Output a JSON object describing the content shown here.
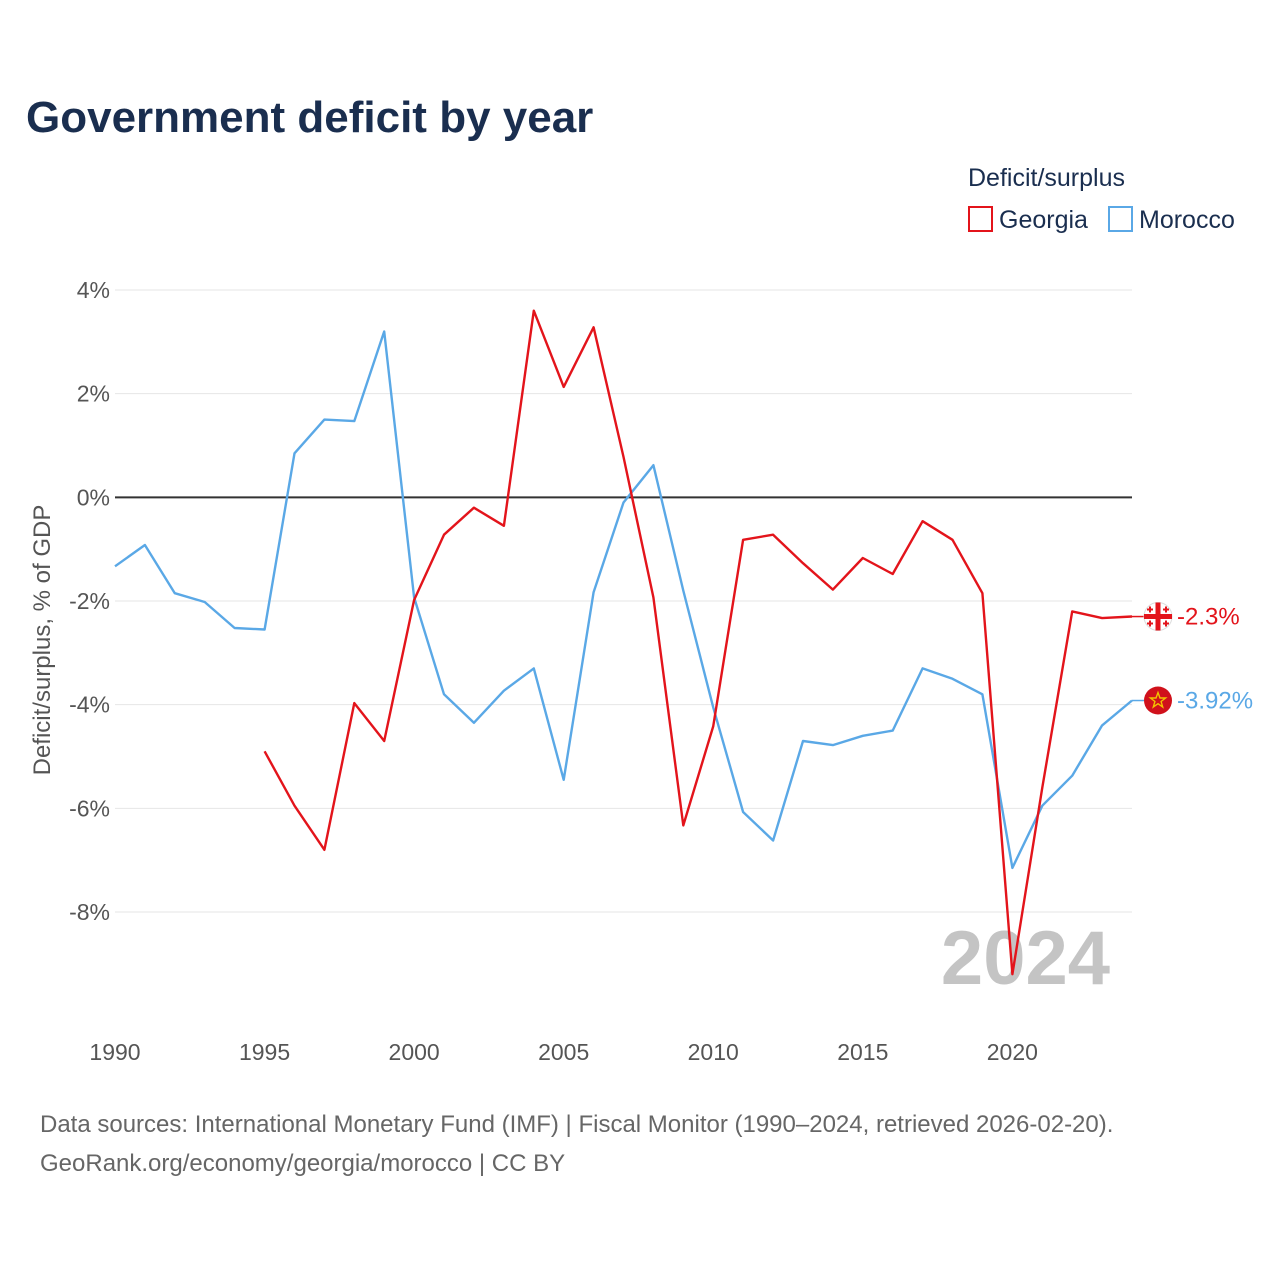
{
  "chart_data": {
    "type": "line",
    "title": "Government deficit by year",
    "ylabel": "Deficit/surplus, % of GDP",
    "xlabel": "",
    "legend_title": "Deficit/surplus",
    "legend_position": "top-right",
    "xlim": [
      1990,
      2024
    ],
    "ylim": [
      -10,
      4
    ],
    "x_ticks": [
      1990,
      1995,
      2000,
      2005,
      2010,
      2015,
      2020
    ],
    "x_tick_labels": [
      "1990",
      "1995",
      "2000",
      "2005",
      "2010",
      "2015",
      "2020"
    ],
    "y_ticks": [
      4,
      2,
      0,
      -2,
      -4,
      -6,
      -8
    ],
    "y_tick_labels": [
      "4%",
      "2%",
      "0%",
      "-2%",
      "-4%",
      "-6%",
      "-8%"
    ],
    "year_watermark": "2024",
    "series": [
      {
        "name": "Georgia",
        "color": "#e3141b",
        "end_label": "-2.3%",
        "icon": "georgia-flag-icon",
        "x": [
          1995,
          1996,
          1997,
          1998,
          1999,
          2000,
          2001,
          2002,
          2003,
          2004,
          2005,
          2006,
          2007,
          2008,
          2009,
          2010,
          2011,
          2012,
          2013,
          2014,
          2015,
          2016,
          2017,
          2018,
          2019,
          2020,
          2021,
          2022,
          2023,
          2024
        ],
        "values": [
          -4.9,
          -5.95,
          -6.8,
          -3.97,
          -4.7,
          -1.98,
          -0.72,
          -0.2,
          -0.55,
          3.6,
          2.13,
          3.28,
          0.78,
          -1.93,
          -6.33,
          -4.42,
          -0.82,
          -0.72,
          -1.27,
          -1.78,
          -1.17,
          -1.48,
          -0.46,
          -0.82,
          -1.85,
          -9.2,
          -5.6,
          -2.2,
          -2.33,
          -2.3
        ]
      },
      {
        "name": "Morocco",
        "color": "#5aa8e6",
        "end_label": "-3.92%",
        "icon": "morocco-flag-icon",
        "x": [
          1990,
          1991,
          1992,
          1993,
          1994,
          1995,
          1996,
          1997,
          1998,
          1999,
          2000,
          2001,
          2002,
          2003,
          2004,
          2005,
          2006,
          2007,
          2008,
          2009,
          2010,
          2011,
          2012,
          2013,
          2014,
          2015,
          2016,
          2017,
          2018,
          2019,
          2020,
          2021,
          2022,
          2023,
          2024
        ],
        "values": [
          -1.33,
          -0.92,
          -1.85,
          -2.02,
          -2.52,
          -2.55,
          0.85,
          1.5,
          1.47,
          3.2,
          -1.93,
          -3.8,
          -4.35,
          -3.73,
          -3.3,
          -5.45,
          -1.83,
          -0.1,
          0.62,
          -1.8,
          -4.05,
          -6.07,
          -6.62,
          -4.7,
          -4.78,
          -4.6,
          -4.5,
          -3.3,
          -3.5,
          -3.8,
          -7.15,
          -5.95,
          -5.37,
          -4.4,
          -3.92
        ]
      }
    ]
  },
  "sources_line": "Data sources: International Monetary Fund (IMF) | Fiscal Monitor (1990–2024, retrieved 2026-02-20).",
  "attribution_line": "GeoRank.org/economy/georgia/morocco | CC BY"
}
